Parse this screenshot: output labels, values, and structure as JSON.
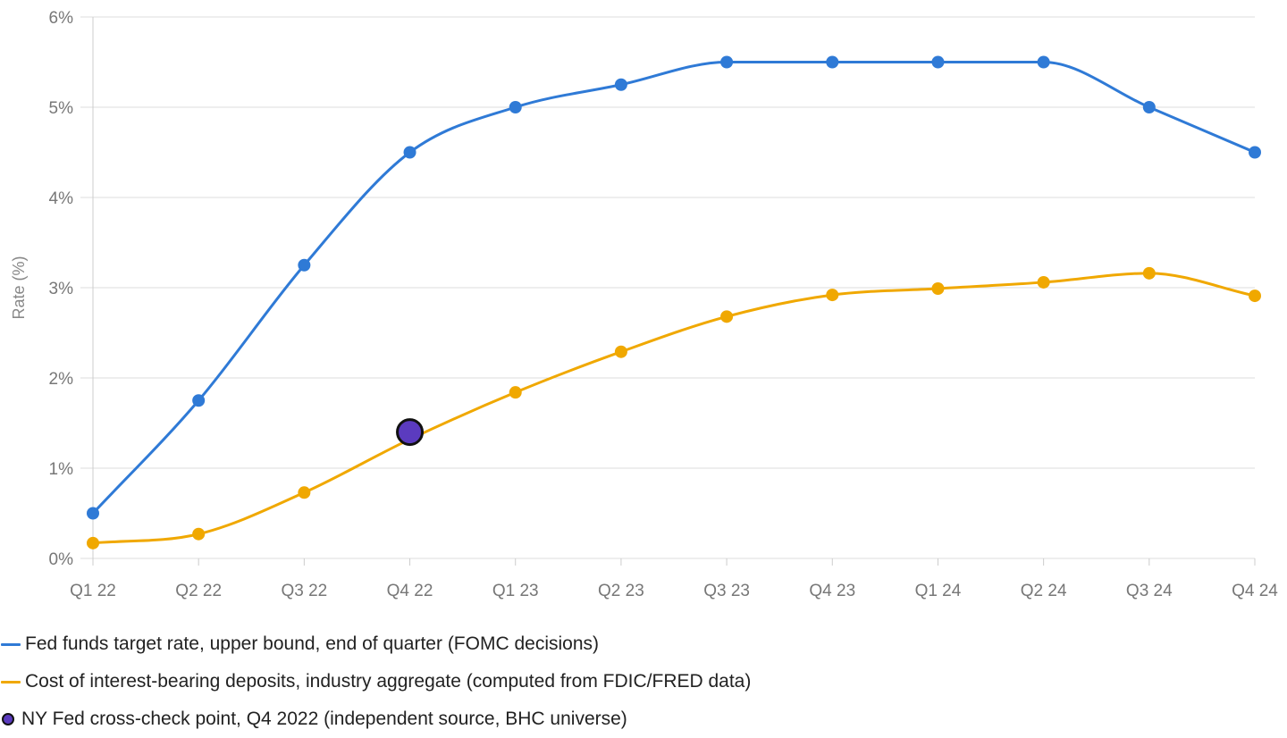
{
  "chart_data": {
    "type": "line",
    "title": "",
    "xlabel": "",
    "ylabel": "Rate (%)",
    "categories": [
      "Q1 22",
      "Q2 22",
      "Q3 22",
      "Q4 22",
      "Q1 23",
      "Q2 23",
      "Q3 23",
      "Q4 23",
      "Q1 24",
      "Q2 24",
      "Q3 24",
      "Q4 24"
    ],
    "ylim": [
      0,
      6
    ],
    "yticks": [
      "0%",
      "1%",
      "2%",
      "3%",
      "4%",
      "5%",
      "6%"
    ],
    "grid": true,
    "legend_position": "bottom-left",
    "series": [
      {
        "name": "Fed funds target rate, upper bound, end of quarter (FOMC decisions)",
        "color": "#2f7ad6",
        "values": [
          0.5,
          1.75,
          3.25,
          4.5,
          5.0,
          5.25,
          5.5,
          5.5,
          5.5,
          5.5,
          5.0,
          4.5
        ]
      },
      {
        "name": "Cost of interest-bearing deposits, industry aggregate (computed from FDIC/FRED data)",
        "color": "#f0a800",
        "values": [
          0.17,
          0.27,
          0.73,
          1.32,
          1.84,
          2.29,
          2.68,
          2.92,
          2.99,
          3.06,
          3.16,
          2.91
        ]
      }
    ],
    "annotations": [
      {
        "name": "NY Fed cross-check point, Q4 2022 (independent source, BHC universe)",
        "category": "Q4 22",
        "value": 1.4,
        "fill_color": "#5b3bbf",
        "stroke_color": "#111111"
      }
    ]
  }
}
